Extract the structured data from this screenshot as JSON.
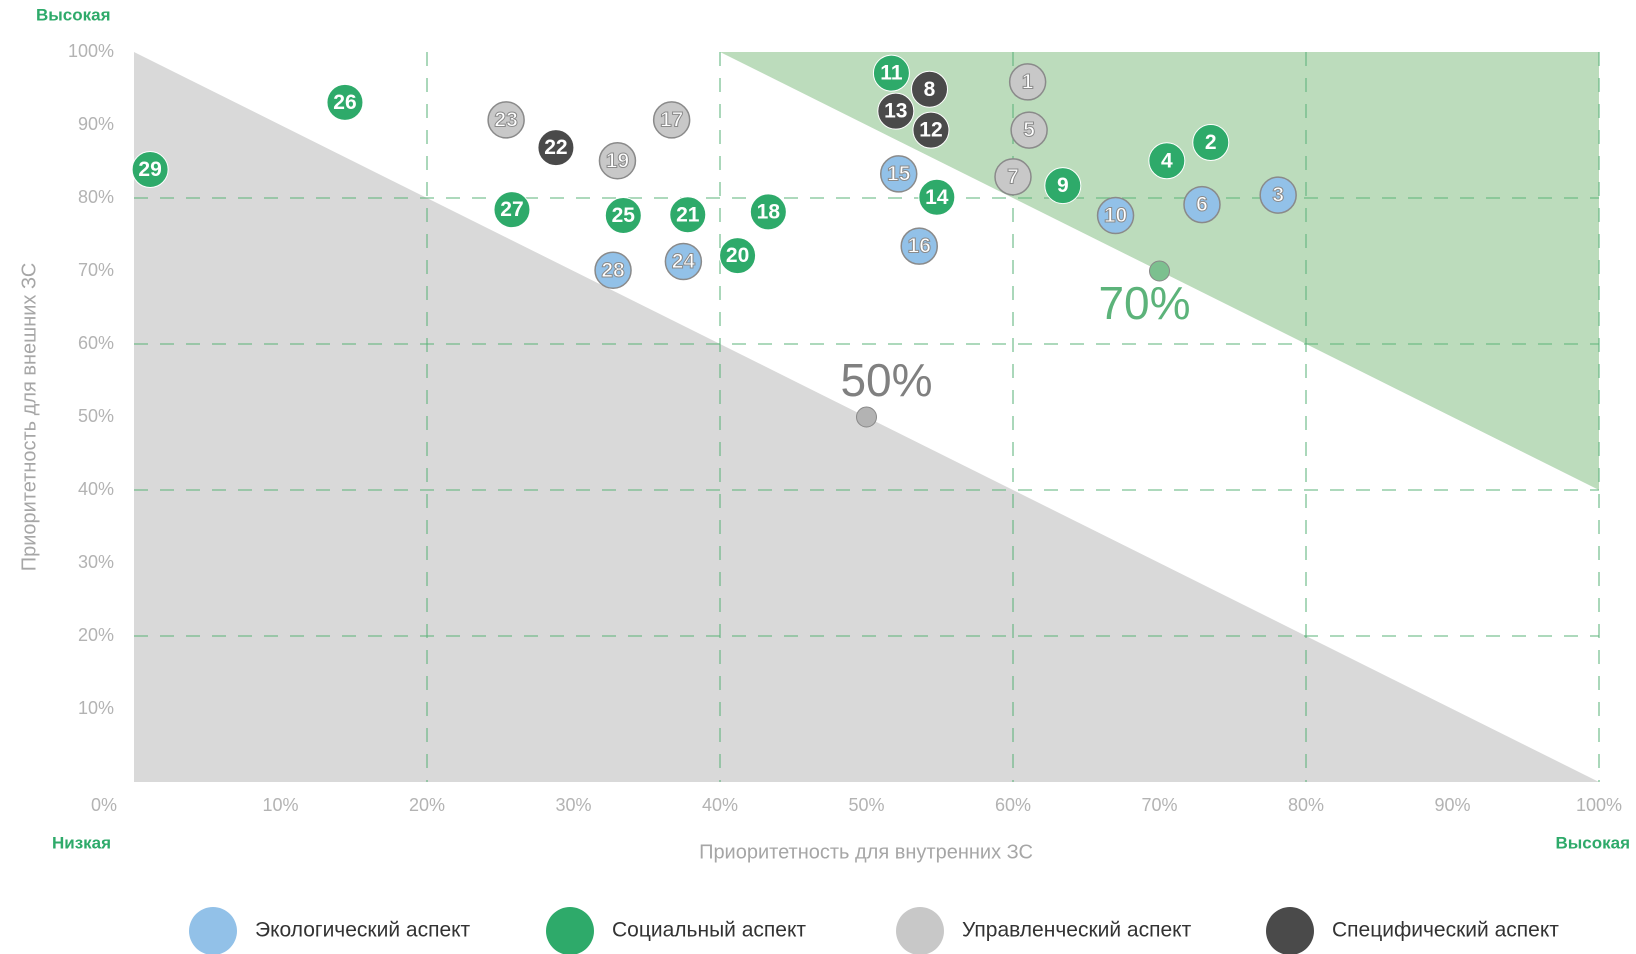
{
  "chart_data": {
    "type": "scatter",
    "x_label": "Приоритетность для внутренних ЗС",
    "y_label": "Приоритетность для внешних ЗС",
    "y_high_label": "Высокая",
    "x_low_label": "Низкая",
    "x_high_label": "Высокая",
    "xlim": [
      0,
      100
    ],
    "ylim": [
      0,
      100
    ],
    "xticks": [
      {
        "value": 0,
        "label": "0%"
      },
      {
        "value": 10,
        "label": "10%"
      },
      {
        "value": 20,
        "label": "20%"
      },
      {
        "value": 30,
        "label": "30%"
      },
      {
        "value": 40,
        "label": "40%"
      },
      {
        "value": 50,
        "label": "50%"
      },
      {
        "value": 60,
        "label": "60%"
      },
      {
        "value": 70,
        "label": "70%"
      },
      {
        "value": 80,
        "label": "80%"
      },
      {
        "value": 90,
        "label": "90%"
      },
      {
        "value": 100,
        "label": "100%"
      }
    ],
    "yticks": [
      {
        "value": 10,
        "label": "10%"
      },
      {
        "value": 20,
        "label": "20%"
      },
      {
        "value": 30,
        "label": "30%"
      },
      {
        "value": 40,
        "label": "40%"
      },
      {
        "value": 50,
        "label": "50%"
      },
      {
        "value": 60,
        "label": "60%"
      },
      {
        "value": 70,
        "label": "70%"
      },
      {
        "value": 80,
        "label": "80%"
      },
      {
        "value": 90,
        "label": "90%"
      },
      {
        "value": 100,
        "label": "100%"
      }
    ],
    "grid": true,
    "thresholds": [
      {
        "text": "50%",
        "x": 50,
        "y": 50,
        "color": "#d9d9d9",
        "dot": "#b3b3b3",
        "text_color": "#808080"
      },
      {
        "text": "70%",
        "x": 70,
        "y": 70,
        "color": "#bcdcbc",
        "dot": "#7cc08f",
        "text_color": "#5cb37a"
      }
    ],
    "series": [
      {
        "name": "Экологический аспект",
        "color": "#92c1e8",
        "labels": [
          "3",
          "6",
          "10",
          "15",
          "16",
          "24",
          "28"
        ],
        "x": [
          78.1,
          72.9,
          67.0,
          52.2,
          53.6,
          37.5,
          32.7
        ],
        "values": [
          80.4,
          79.1,
          77.6,
          83.3,
          73.4,
          71.3,
          70.1
        ]
      },
      {
        "name": "Социальный аспект",
        "color": "#2eaa6a",
        "labels": [
          "2",
          "4",
          "9",
          "11",
          "14",
          "18",
          "20",
          "21",
          "25",
          "26",
          "27",
          "29"
        ],
        "x": [
          73.5,
          70.5,
          63.4,
          51.7,
          54.8,
          43.3,
          41.2,
          37.8,
          33.4,
          14.4,
          25.8,
          1.1
        ],
        "values": [
          87.6,
          85.1,
          81.7,
          97.1,
          80.1,
          78.1,
          72.1,
          77.7,
          77.6,
          93.1,
          78.4,
          83.9
        ]
      },
      {
        "name": "Управленческий аспект",
        "color": "#c8c8c8",
        "labels": [
          "1",
          "5",
          "7",
          "17",
          "19",
          "23"
        ],
        "x": [
          61.0,
          61.1,
          60.0,
          36.7,
          33.0,
          25.4
        ],
        "values": [
          95.9,
          89.3,
          82.9,
          90.7,
          85.1,
          90.7
        ]
      },
      {
        "name": "Специфический аспект",
        "color": "#4a4a4a",
        "labels": [
          "8",
          "12",
          "13",
          "22"
        ],
        "x": [
          54.3,
          54.4,
          52.0,
          28.8
        ],
        "values": [
          94.9,
          89.3,
          91.9,
          86.9
        ]
      }
    ]
  }
}
